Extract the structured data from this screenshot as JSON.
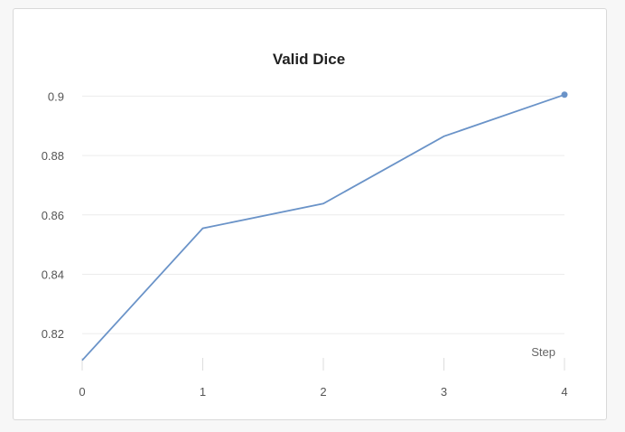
{
  "chart_data": {
    "type": "line",
    "title": "Valid Dice",
    "xlabel": "Step",
    "ylabel": "",
    "x": [
      0,
      1,
      2,
      3,
      4
    ],
    "x_ticks": [
      "0",
      "1",
      "2",
      "3",
      "4"
    ],
    "y_ticks": [
      "0.82",
      "0.84",
      "0.86",
      "0.88",
      "0.9"
    ],
    "y_tick_values": [
      0.82,
      0.84,
      0.86,
      0.88,
      0.9
    ],
    "xlim": [
      0,
      4
    ],
    "ylim": [
      0.81,
      0.905
    ],
    "grid": true,
    "series": [
      {
        "values": [
          0.811,
          0.8555,
          0.8638,
          0.8865,
          0.9005
        ],
        "color": "#6a93c8"
      }
    ]
  }
}
